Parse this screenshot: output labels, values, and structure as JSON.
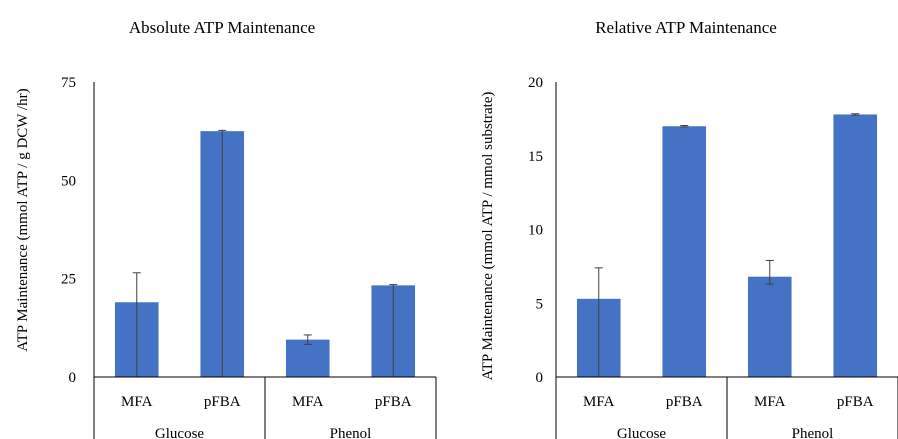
{
  "chart_data": [
    {
      "type": "bar",
      "title": "Absolute ATP Maintenance",
      "ylabel": "ATP Maintenance (mmol ATP / g DCW /hr)",
      "xlabel": "",
      "groups": [
        {
          "label": "Glucose",
          "categories": [
            "MFA",
            "pFBA"
          ]
        },
        {
          "label": "Phenol",
          "categories": [
            "MFA",
            "pFBA"
          ]
        }
      ],
      "categories": [
        "MFA",
        "pFBA",
        "MFA",
        "pFBA"
      ],
      "values": [
        19.0,
        62.5,
        9.5,
        23.3
      ],
      "error_low": [
        19.0,
        62.5,
        1.2,
        23.3
      ],
      "error_high": [
        7.5,
        0.2,
        1.2,
        0.2
      ],
      "ylim": [
        0,
        75
      ],
      "yticks": [
        0,
        25,
        50,
        75
      ],
      "bar_color": "#4472C4",
      "error_color": "#404040",
      "grid": false,
      "legend": "none"
    },
    {
      "type": "bar",
      "title": "Relative ATP Maintenance",
      "ylabel": "ATP Maintenance (mmol ATP / mmol substrate)",
      "xlabel": "",
      "groups": [
        {
          "label": "Glucose",
          "categories": [
            "MFA",
            "pFBA"
          ]
        },
        {
          "label": "Phenol",
          "categories": [
            "MFA",
            "pFBA"
          ]
        }
      ],
      "categories": [
        "MFA",
        "pFBA",
        "MFA",
        "pFBA"
      ],
      "values": [
        5.3,
        17.0,
        6.8,
        17.8
      ],
      "error_low": [
        5.3,
        0.05,
        0.5,
        0.05
      ],
      "error_high": [
        2.1,
        0.05,
        1.1,
        0.05
      ],
      "ylim": [
        0,
        20
      ],
      "yticks": [
        0,
        5,
        10,
        15,
        20
      ],
      "bar_color": "#4472C4",
      "error_color": "#404040",
      "grid": false,
      "legend": "none"
    }
  ]
}
